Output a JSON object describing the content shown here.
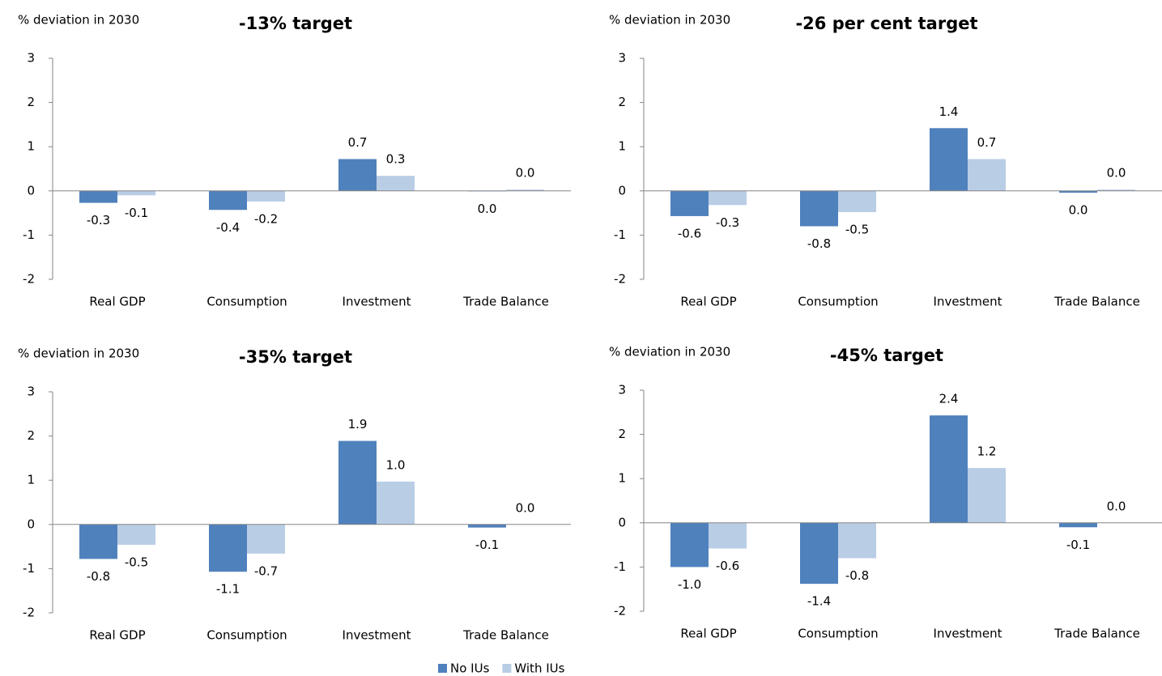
{
  "legend": [
    {
      "name": "No IUs",
      "color": "#4f81bd"
    },
    {
      "name": "With IUs",
      "color": "#b9cde5"
    }
  ],
  "chart_data": [
    {
      "type": "bar",
      "title": "-13% target",
      "y_label": "% deviation in 2030",
      "categories": [
        "Real GDP",
        "Consumption",
        "Investment",
        "Trade Balance"
      ],
      "series": [
        {
          "values": [
            -0.27,
            -0.43,
            0.72,
            -0.01
          ],
          "value_labels": [
            "-0.3",
            "-0.4",
            "0.7",
            "0.0"
          ]
        },
        {
          "values": [
            -0.1,
            -0.24,
            0.34,
            0.03
          ],
          "value_labels": [
            "-0.1",
            "-0.2",
            "0.3",
            "0.0"
          ]
        }
      ],
      "ylim": [
        -2,
        3
      ],
      "yticks": [
        -2,
        -1,
        0,
        1,
        2,
        3
      ]
    },
    {
      "type": "bar",
      "title": "-26 per cent target",
      "y_label": "% deviation in 2030",
      "categories": [
        "Real GDP",
        "Consumption",
        "Investment",
        "Trade Balance"
      ],
      "series": [
        {
          "values": [
            -0.57,
            -0.8,
            1.42,
            -0.04
          ],
          "value_labels": [
            "-0.6",
            "-0.8",
            "1.4",
            "0.0"
          ]
        },
        {
          "values": [
            -0.32,
            -0.48,
            0.72,
            0.03
          ],
          "value_labels": [
            "-0.3",
            "-0.5",
            "0.7",
            "0.0"
          ]
        }
      ],
      "ylim": [
        -2,
        3
      ],
      "yticks": [
        -2,
        -1,
        0,
        1,
        2,
        3
      ]
    },
    {
      "type": "bar",
      "title": "-35% target",
      "y_label": "% deviation in 2030",
      "categories": [
        "Real GDP",
        "Consumption",
        "Investment",
        "Trade Balance"
      ],
      "series": [
        {
          "values": [
            -0.78,
            -1.07,
            1.89,
            -0.07
          ],
          "value_labels": [
            "-0.8",
            "-1.1",
            "1.9",
            "-0.1"
          ]
        },
        {
          "values": [
            -0.46,
            -0.66,
            0.97,
            0
          ],
          "value_labels": [
            "-0.5",
            "-0.7",
            "1.0",
            "0.0"
          ]
        }
      ],
      "ylim": [
        -2,
        3
      ],
      "yticks": [
        -2,
        -1,
        0,
        1,
        2,
        3
      ]
    },
    {
      "type": "bar",
      "title": "-45% target",
      "y_label": "% deviation in 2030",
      "categories": [
        "Real GDP",
        "Consumption",
        "Investment",
        "Trade Balance"
      ],
      "series": [
        {
          "values": [
            -1.0,
            -1.38,
            2.43,
            -0.1
          ],
          "value_labels": [
            "-1.0",
            "-1.4",
            "2.4",
            "-0.1"
          ]
        },
        {
          "values": [
            -0.58,
            -0.8,
            1.24,
            0
          ],
          "value_labels": [
            "-0.6",
            "-0.8",
            "1.2",
            "0.0"
          ]
        }
      ],
      "ylim": [
        -2,
        3
      ],
      "yticks": [
        -2,
        -1,
        0,
        1,
        2,
        3
      ]
    }
  ]
}
